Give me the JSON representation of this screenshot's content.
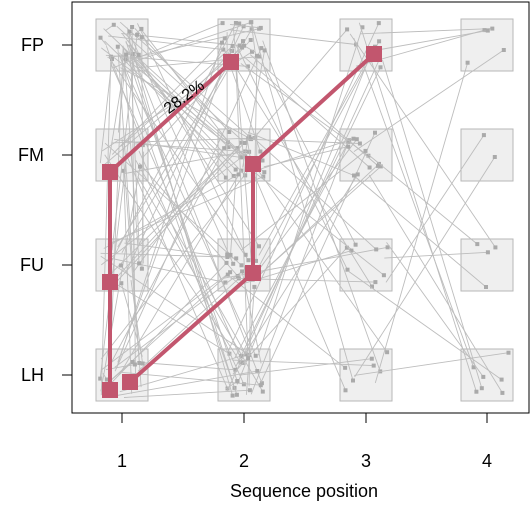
{
  "chart_data": {
    "type": "sequence-plot",
    "xlabel": "Sequence position",
    "x_categories": [
      "1",
      "2",
      "3",
      "4"
    ],
    "y_categories": [
      "LH",
      "FU",
      "FM",
      "FP"
    ],
    "grid": false,
    "highlight_color": "#c2566e",
    "background_line_color": "#bdbdbd",
    "cell_fill": "#efefef",
    "highlighted_path": [
      {
        "position": 1,
        "state": "LH"
      },
      {
        "position": 1,
        "state": "FU"
      },
      {
        "position": 1,
        "state": "FM"
      },
      {
        "position": 2,
        "state": "FP"
      }
    ],
    "highlighted_path_2": [
      {
        "position": 1,
        "state": "LH"
      },
      {
        "position": 2,
        "state": "FU"
      },
      {
        "position": 2,
        "state": "FM"
      },
      {
        "position": 3,
        "state": "FP"
      }
    ],
    "annotations": [
      {
        "text": "28.2%",
        "from": {
          "position": 1,
          "state": "FM"
        },
        "to": {
          "position": 2,
          "state": "FP"
        }
      }
    ]
  }
}
